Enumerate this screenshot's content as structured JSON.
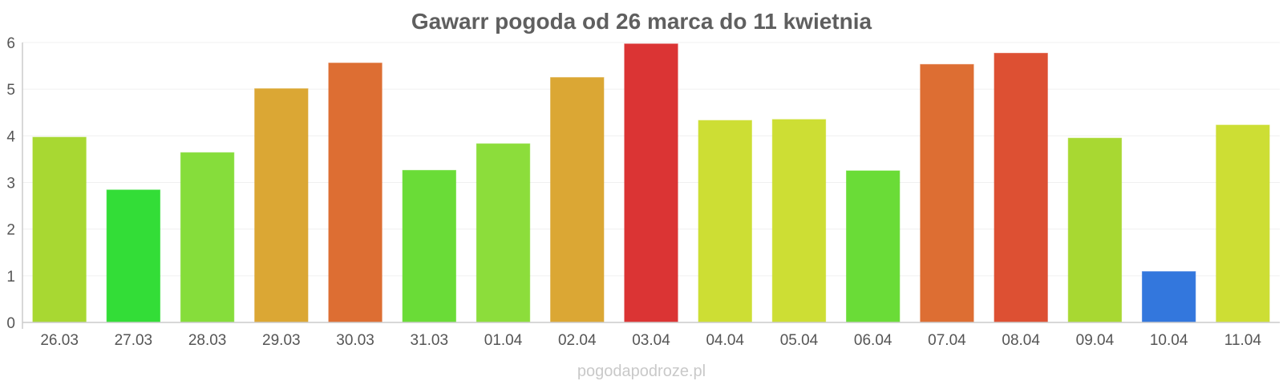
{
  "chart_data": {
    "type": "bar",
    "title": "Gawarr pogoda od 26 marca do 11 kwietnia",
    "xlabel": "",
    "ylabel": "",
    "ylim": [
      0,
      6
    ],
    "yticks": [
      "0",
      "1",
      "2",
      "3",
      "4",
      "5",
      "6"
    ],
    "grid": true,
    "categories": [
      "26.03",
      "27.03",
      "28.03",
      "29.03",
      "30.03",
      "31.03",
      "01.04",
      "02.04",
      "03.04",
      "04.04",
      "05.04",
      "06.04",
      "07.04",
      "08.04",
      "09.04",
      "10.04",
      "11.04"
    ],
    "values": [
      3.97,
      2.84,
      3.64,
      5.01,
      5.56,
      3.26,
      3.83,
      5.25,
      5.97,
      4.33,
      4.35,
      3.25,
      5.53,
      5.77,
      3.95,
      1.09,
      4.23
    ],
    "colors": [
      "#a8d832",
      "#33dd37",
      "#86dd3b",
      "#dba734",
      "#dd6e33",
      "#6adc37",
      "#8cdd3b",
      "#dba734",
      "#db3434",
      "#cdde34",
      "#cdde34",
      "#6adc37",
      "#dd6e33",
      "#dd5033",
      "#a8d832",
      "#3377dd",
      "#cdde34"
    ]
  },
  "watermark": "pogodapodroze.pl"
}
